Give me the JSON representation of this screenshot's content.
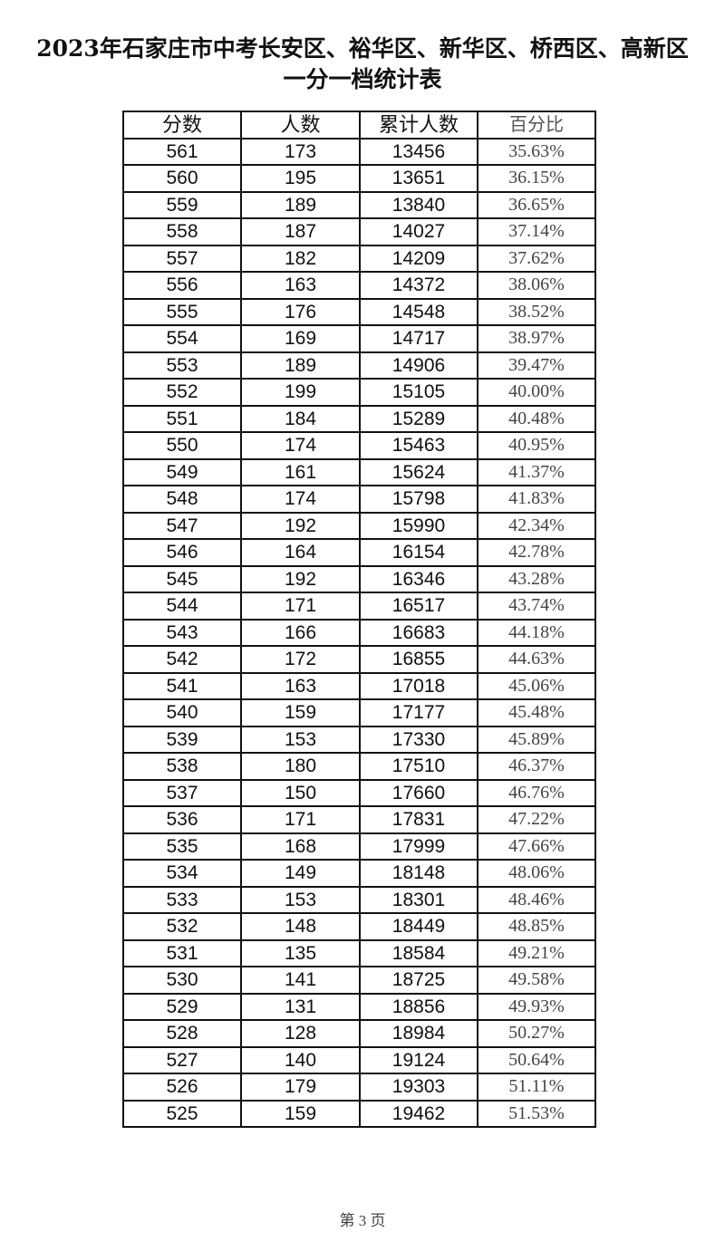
{
  "title": {
    "line1": "2023年石家庄市中考长安区、裕华区、新华区、桥西区、高新区",
    "line2": "一分一档统计表"
  },
  "table": {
    "headers": [
      "分数",
      "人数",
      "累计人数",
      "百分比"
    ],
    "rows": [
      [
        "561",
        "173",
        "13456",
        "35.63%"
      ],
      [
        "560",
        "195",
        "13651",
        "36.15%"
      ],
      [
        "559",
        "189",
        "13840",
        "36.65%"
      ],
      [
        "558",
        "187",
        "14027",
        "37.14%"
      ],
      [
        "557",
        "182",
        "14209",
        "37.62%"
      ],
      [
        "556",
        "163",
        "14372",
        "38.06%"
      ],
      [
        "555",
        "176",
        "14548",
        "38.52%"
      ],
      [
        "554",
        "169",
        "14717",
        "38.97%"
      ],
      [
        "553",
        "189",
        "14906",
        "39.47%"
      ],
      [
        "552",
        "199",
        "15105",
        "40.00%"
      ],
      [
        "551",
        "184",
        "15289",
        "40.48%"
      ],
      [
        "550",
        "174",
        "15463",
        "40.95%"
      ],
      [
        "549",
        "161",
        "15624",
        "41.37%"
      ],
      [
        "548",
        "174",
        "15798",
        "41.83%"
      ],
      [
        "547",
        "192",
        "15990",
        "42.34%"
      ],
      [
        "546",
        "164",
        "16154",
        "42.78%"
      ],
      [
        "545",
        "192",
        "16346",
        "43.28%"
      ],
      [
        "544",
        "171",
        "16517",
        "43.74%"
      ],
      [
        "543",
        "166",
        "16683",
        "44.18%"
      ],
      [
        "542",
        "172",
        "16855",
        "44.63%"
      ],
      [
        "541",
        "163",
        "17018",
        "45.06%"
      ],
      [
        "540",
        "159",
        "17177",
        "45.48%"
      ],
      [
        "539",
        "153",
        "17330",
        "45.89%"
      ],
      [
        "538",
        "180",
        "17510",
        "46.37%"
      ],
      [
        "537",
        "150",
        "17660",
        "46.76%"
      ],
      [
        "536",
        "171",
        "17831",
        "47.22%"
      ],
      [
        "535",
        "168",
        "17999",
        "47.66%"
      ],
      [
        "534",
        "149",
        "18148",
        "48.06%"
      ],
      [
        "533",
        "153",
        "18301",
        "48.46%"
      ],
      [
        "532",
        "148",
        "18449",
        "48.85%"
      ],
      [
        "531",
        "135",
        "18584",
        "49.21%"
      ],
      [
        "530",
        "141",
        "18725",
        "49.58%"
      ],
      [
        "529",
        "131",
        "18856",
        "49.93%"
      ],
      [
        "528",
        "128",
        "18984",
        "50.27%"
      ],
      [
        "527",
        "140",
        "19124",
        "50.64%"
      ],
      [
        "526",
        "179",
        "19303",
        "51.11%"
      ],
      [
        "525",
        "159",
        "19462",
        "51.53%"
      ]
    ]
  },
  "footer": {
    "page_label": "第 3 页"
  }
}
